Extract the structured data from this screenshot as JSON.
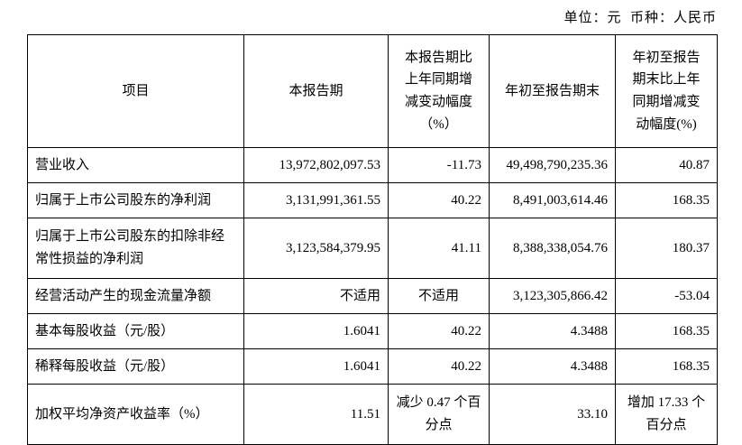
{
  "meta": {
    "unit_line": "单位：元  币种：人民币"
  },
  "table": {
    "headers": [
      "项目",
      "本报告期",
      "本报告期比上年同期增减变动幅度（%）",
      "年初至报告期末",
      "年初至报告期末比上年同期增减变动幅度(%)"
    ],
    "rows": [
      {
        "cells": [
          "营业收入",
          "13,972,802,097.53",
          "-11.73",
          "49,498,790,235.36",
          "40.87"
        ]
      },
      {
        "cells": [
          "归属于上市公司股东的净利润",
          "3,131,991,361.55",
          "40.22",
          "8,491,003,614.46",
          "168.35"
        ]
      },
      {
        "cells": [
          "归属于上市公司股东的扣除非经常性损益的净利润",
          "3,123,584,379.95",
          "41.11",
          "8,388,338,054.76",
          "180.37"
        ]
      },
      {
        "cells": [
          "经营活动产生的现金流量净额",
          "不适用",
          "不适用",
          "3,123,305,866.42",
          "-53.04"
        ]
      },
      {
        "cells": [
          "基本每股收益（元/股）",
          "1.6041",
          "40.22",
          "4.3488",
          "168.35"
        ]
      },
      {
        "cells": [
          "稀释每股收益（元/股）",
          "1.6041",
          "40.22",
          "4.3488",
          "168.35"
        ]
      },
      {
        "cells": [
          "加权平均净资产收益率（%）",
          "11.51",
          "减少 0.47 个百分点",
          "33.10",
          "增加 17.33 个百分点"
        ]
      }
    ]
  }
}
